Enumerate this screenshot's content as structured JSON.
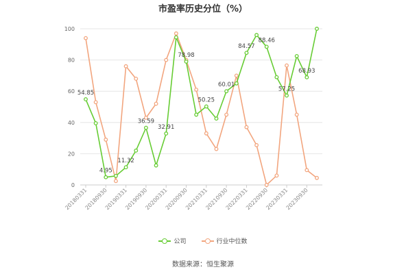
{
  "chart_data": {
    "type": "line",
    "title": "市盈率历史分位（%）",
    "xlabel": "",
    "ylabel": "",
    "ylim": [
      0,
      100
    ],
    "yticks": [
      "0",
      "20",
      "40",
      "60",
      "80",
      "100"
    ],
    "grid": true,
    "legend_placement": "bottom",
    "x_tick_labels": [
      "20180331",
      "20180930",
      "20190331",
      "20190930",
      "20200331",
      "20200930",
      "20210331",
      "20210930",
      "20220331",
      "20220930",
      "20230331",
      "20230930"
    ],
    "x": [
      "20180331",
      "20180630",
      "20180930",
      "20181231",
      "20190331",
      "20190630",
      "20190930",
      "20191231",
      "20200331",
      "20200630",
      "20200930",
      "20201231",
      "20210331",
      "20210630",
      "20210930",
      "20211231",
      "20220331",
      "20220630",
      "20220930",
      "20221231",
      "20230331",
      "20230630",
      "20230930",
      "20231231"
    ],
    "series": [
      {
        "name": "公司",
        "color": "#66cc33",
        "values": [
          54.85,
          39.5,
          4.95,
          5.8,
          11.32,
          22.0,
          36.59,
          12.5,
          32.91,
          94.5,
          78.98,
          45.0,
          50.25,
          42.5,
          60.01,
          65.0,
          84.57,
          96.0,
          88.46,
          69.0,
          57.25,
          82.5,
          68.93,
          100.0
        ],
        "labeled_points": [
          {
            "index": 0,
            "text": "54.85"
          },
          {
            "index": 2,
            "text": "4.95"
          },
          {
            "index": 4,
            "text": "11.32"
          },
          {
            "index": 6,
            "text": "36.59"
          },
          {
            "index": 8,
            "text": "32.91"
          },
          {
            "index": 10,
            "text": "78.98"
          },
          {
            "index": 12,
            "text": "50.25"
          },
          {
            "index": 14,
            "text": "60.01"
          },
          {
            "index": 16,
            "text": "84.57"
          },
          {
            "index": 18,
            "text": "88.46"
          },
          {
            "index": 20,
            "text": "57.25"
          },
          {
            "index": 22,
            "text": "68.93"
          }
        ]
      },
      {
        "name": "行业中位数",
        "color": "#f2a57e",
        "values": [
          94.0,
          53.0,
          29.0,
          2.5,
          76.0,
          68.0,
          43.0,
          52.0,
          80.0,
          97.0,
          80.0,
          61.0,
          33.0,
          23.0,
          45.0,
          70.0,
          37.0,
          25.5,
          0.0,
          6.0,
          76.5,
          45.0,
          9.5,
          4.5
        ]
      }
    ]
  },
  "source": "数据来源：恒生聚源"
}
